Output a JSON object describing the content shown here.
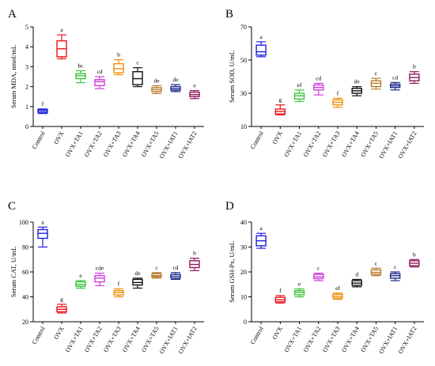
{
  "chart_data": [
    {
      "type": "box",
      "panel": "A",
      "ylabel": "Serum MDA, nmol/mL",
      "ylim": [
        0,
        5
      ],
      "yticks": [
        0,
        1,
        2,
        3,
        4,
        5
      ],
      "categories": [
        "Control",
        "OVX",
        "OVX+TA1",
        "OVX+TA2",
        "OVX+TA3",
        "OVX+TA4",
        "OVX+TA5",
        "OVX+IAT1",
        "OVX+IAT2"
      ],
      "colors": [
        "#1f1fdc",
        "#e8141c",
        "#3cc43c",
        "#d23ce0",
        "#f0900a",
        "#111111",
        "#b87a2c",
        "#1a2a8c",
        "#8c1a5a"
      ],
      "boxes": [
        {
          "min": 0.65,
          "q1": 0.7,
          "median": 0.78,
          "q3": 0.85,
          "max": 0.88
        },
        {
          "min": 3.4,
          "q1": 3.5,
          "median": 3.9,
          "q3": 4.3,
          "max": 4.6
        },
        {
          "min": 2.2,
          "q1": 2.4,
          "median": 2.55,
          "q3": 2.65,
          "max": 2.8
        },
        {
          "min": 1.9,
          "q1": 2.05,
          "median": 2.25,
          "q3": 2.35,
          "max": 2.5
        },
        {
          "min": 2.6,
          "q1": 2.7,
          "median": 2.9,
          "q3": 3.15,
          "max": 3.35
        },
        {
          "min": 2.0,
          "q1": 2.1,
          "median": 2.4,
          "q3": 2.75,
          "max": 2.95
        },
        {
          "min": 1.65,
          "q1": 1.75,
          "median": 1.85,
          "q3": 1.95,
          "max": 2.05
        },
        {
          "min": 1.75,
          "q1": 1.82,
          "median": 1.9,
          "q3": 2.0,
          "max": 2.1
        },
        {
          "min": 1.4,
          "q1": 1.5,
          "median": 1.6,
          "q3": 1.72,
          "max": 1.8
        }
      ],
      "significance": [
        "f",
        "a",
        "bc",
        "cd",
        "b",
        "c",
        "de",
        "de",
        "e"
      ]
    },
    {
      "type": "box",
      "panel": "B",
      "ylabel": "Serum SOD, U/mL",
      "ylim": [
        10,
        70
      ],
      "yticks": [
        10,
        30,
        50,
        70
      ],
      "categories": [
        "Control",
        "OVX",
        "OVX+TA1",
        "OVX+TA2",
        "OVX+TA3",
        "OVX+TA4",
        "OVX+TA5",
        "OVX+IAT1",
        "OVX+IAT2"
      ],
      "colors": [
        "#1f1fdc",
        "#e8141c",
        "#3cc43c",
        "#d23ce0",
        "#f0900a",
        "#111111",
        "#b87a2c",
        "#1a2a8c",
        "#8c1a5a"
      ],
      "boxes": [
        {
          "min": 52,
          "q1": 53,
          "median": 55,
          "q3": 59,
          "max": 61
        },
        {
          "min": 17,
          "q1": 17.5,
          "median": 19,
          "q3": 20.5,
          "max": 23
        },
        {
          "min": 25,
          "q1": 26.5,
          "median": 28.5,
          "q3": 30,
          "max": 32
        },
        {
          "min": 29,
          "q1": 32,
          "median": 33.5,
          "q3": 35,
          "max": 36
        },
        {
          "min": 21.5,
          "q1": 23,
          "median": 24.5,
          "q3": 26,
          "max": 27
        },
        {
          "min": 28.5,
          "q1": 30,
          "median": 31.5,
          "q3": 33,
          "max": 34
        },
        {
          "min": 32.5,
          "q1": 34,
          "median": 36,
          "q3": 37.5,
          "max": 39
        },
        {
          "min": 32,
          "q1": 33.5,
          "median": 34.5,
          "q3": 35.5,
          "max": 36.5
        },
        {
          "min": 36,
          "q1": 37.5,
          "median": 39.5,
          "q3": 41.5,
          "max": 43
        }
      ],
      "significance": [
        "a",
        "g",
        "ef",
        "cd",
        "f",
        "de",
        "c",
        "cd",
        "b"
      ]
    },
    {
      "type": "box",
      "panel": "C",
      "ylabel": "Serum CAT, U/mL",
      "ylim": [
        20,
        100
      ],
      "yticks": [
        20,
        40,
        60,
        80,
        100
      ],
      "categories": [
        "Control",
        "OVX",
        "OVX+TA1",
        "OVX+TA2",
        "OVX+TA3",
        "OVX+TA4",
        "OVX+TA5",
        "OVX+IAT1",
        "OVX+IAT2"
      ],
      "colors": [
        "#1f1fdc",
        "#e8141c",
        "#3cc43c",
        "#d23ce0",
        "#f0900a",
        "#111111",
        "#b87a2c",
        "#1a2a8c",
        "#8c1a5a"
      ],
      "boxes": [
        {
          "min": 80,
          "q1": 87,
          "median": 91,
          "q3": 94,
          "max": 96
        },
        {
          "min": 27,
          "q1": 28,
          "median": 30,
          "q3": 32,
          "max": 34
        },
        {
          "min": 47,
          "q1": 48.5,
          "median": 50,
          "q3": 52,
          "max": 53
        },
        {
          "min": 49,
          "q1": 52,
          "median": 55,
          "q3": 57,
          "max": 59
        },
        {
          "min": 40,
          "q1": 41.5,
          "median": 43.5,
          "q3": 45,
          "max": 46.5
        },
        {
          "min": 47,
          "q1": 49.5,
          "median": 51.5,
          "q3": 54,
          "max": 55
        },
        {
          "min": 55,
          "q1": 56,
          "median": 57,
          "q3": 58.5,
          "max": 59.5
        },
        {
          "min": 54,
          "q1": 55,
          "median": 56.5,
          "q3": 58,
          "max": 59.5
        },
        {
          "min": 61,
          "q1": 63.5,
          "median": 66,
          "q3": 69,
          "max": 71
        }
      ],
      "significance": [
        "a",
        "g",
        "e",
        "cde",
        "f",
        "de",
        "c",
        "cd",
        "b"
      ]
    },
    {
      "type": "box",
      "panel": "D",
      "ylabel": "Serum GSH-Px, U/mL",
      "ylim": [
        0,
        40
      ],
      "yticks": [
        0,
        10,
        20,
        30,
        40
      ],
      "categories": [
        "Control",
        "OVX",
        "OVX+TA1",
        "OVX+TA2",
        "OVX+TA3",
        "OVX+TA4",
        "OVX+TA5",
        "OVX+IAT1",
        "OVX+IAT2"
      ],
      "colors": [
        "#1f1fdc",
        "#e8141c",
        "#3cc43c",
        "#d23ce0",
        "#f0900a",
        "#111111",
        "#b87a2c",
        "#1a2a8c",
        "#8c1a5a"
      ],
      "boxes": [
        {
          "min": 29.5,
          "q1": 30.5,
          "median": 32.5,
          "q3": 34.5,
          "max": 35.5
        },
        {
          "min": 7.5,
          "q1": 8,
          "median": 8.8,
          "q3": 9.8,
          "max": 10.5
        },
        {
          "min": 10,
          "q1": 10.8,
          "median": 11.8,
          "q3": 12.5,
          "max": 13.2
        },
        {
          "min": 16.5,
          "q1": 17.3,
          "median": 18,
          "q3": 19,
          "max": 19.5
        },
        {
          "min": 9,
          "q1": 9.5,
          "median": 10.2,
          "q3": 11,
          "max": 11.5
        },
        {
          "min": 14,
          "q1": 14.6,
          "median": 15.5,
          "q3": 16.5,
          "max": 17
        },
        {
          "min": 18.5,
          "q1": 19,
          "median": 19.8,
          "q3": 20.8,
          "max": 21.5
        },
        {
          "min": 16.5,
          "q1": 17.5,
          "median": 18.5,
          "q3": 19.3,
          "max": 20
        },
        {
          "min": 22,
          "q1": 22.5,
          "median": 23.5,
          "q3": 24.5,
          "max": 25
        }
      ],
      "significance": [
        "a",
        "f",
        "e",
        "c",
        "ef",
        "d",
        "c",
        "c",
        "b"
      ]
    }
  ]
}
